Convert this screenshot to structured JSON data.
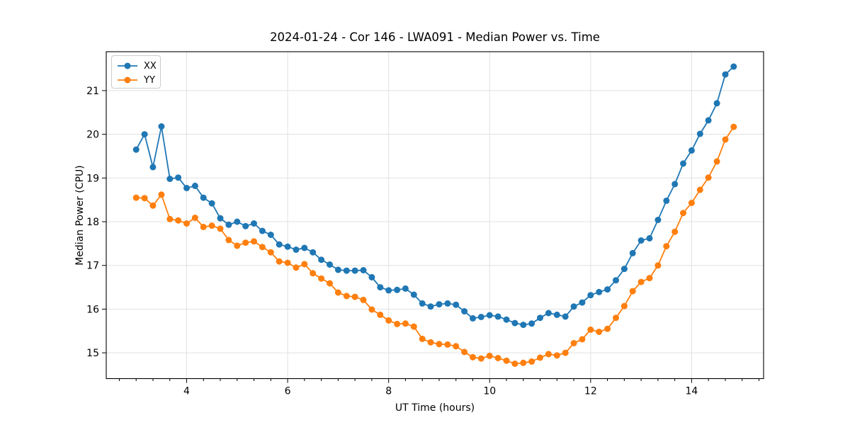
{
  "title": "2024-01-24 - Cor 146 - LWA091 - Median Power vs. Time",
  "chart_data": {
    "type": "line",
    "title": "2024-01-24 - Cor 146 - LWA091 - Median Power vs. Time",
    "xlabel": "UT Time (hours)",
    "ylabel": "Median Power (CPU)",
    "xlim": [
      2.408,
      15.425
    ],
    "ylim": [
      14.41,
      21.89
    ],
    "x_major_ticks": [
      4,
      6,
      8,
      10,
      12,
      14
    ],
    "x_minor_step": 0.33333,
    "y_major_ticks": [
      15,
      16,
      17,
      18,
      19,
      20,
      21
    ],
    "grid": true,
    "grid_color": "#e1e1e1",
    "legend_position": "upper-left",
    "marker": "circle",
    "x": [
      3.0,
      3.167,
      3.333,
      3.5,
      3.667,
      3.833,
      4.0,
      4.167,
      4.333,
      4.5,
      4.667,
      4.833,
      5.0,
      5.167,
      5.333,
      5.5,
      5.667,
      5.833,
      6.0,
      6.167,
      6.333,
      6.5,
      6.667,
      6.833,
      7.0,
      7.167,
      7.333,
      7.5,
      7.667,
      7.833,
      8.0,
      8.167,
      8.333,
      8.5,
      8.667,
      8.833,
      9.0,
      9.167,
      9.333,
      9.5,
      9.667,
      9.833,
      10.0,
      10.167,
      10.333,
      10.5,
      10.667,
      10.833,
      11.0,
      11.167,
      11.333,
      11.5,
      11.667,
      11.833,
      12.0,
      12.167,
      12.333,
      12.5,
      12.667,
      12.833,
      13.0,
      13.167,
      13.333,
      13.5,
      13.667,
      13.833,
      14.0,
      14.167,
      14.333,
      14.5,
      14.667,
      14.833
    ],
    "series": [
      {
        "name": "XX",
        "color": "#1f77b4",
        "values": [
          19.65,
          20.0,
          19.25,
          20.18,
          18.98,
          19.01,
          18.77,
          18.82,
          18.55,
          18.42,
          18.08,
          17.93,
          18.0,
          17.9,
          17.96,
          17.79,
          17.7,
          17.48,
          17.43,
          17.36,
          17.4,
          17.3,
          17.13,
          17.02,
          16.9,
          16.88,
          16.88,
          16.89,
          16.73,
          16.5,
          16.43,
          16.44,
          16.47,
          16.33,
          16.13,
          16.06,
          16.11,
          16.13,
          16.1,
          15.95,
          15.79,
          15.82,
          15.86,
          15.83,
          15.76,
          15.68,
          15.64,
          15.67,
          15.8,
          15.91,
          15.87,
          15.83,
          16.06,
          16.15,
          16.32,
          16.39,
          16.45,
          16.66,
          16.92,
          17.28,
          17.57,
          17.62,
          18.04,
          18.48,
          18.86,
          19.33,
          19.63,
          20.01,
          20.32,
          20.71,
          21.37,
          21.55
        ]
      },
      {
        "name": "YY",
        "color": "#ff7f0e",
        "values": [
          18.55,
          18.54,
          18.37,
          18.62,
          18.06,
          18.03,
          17.96,
          18.09,
          17.88,
          17.91,
          17.84,
          17.58,
          17.45,
          17.52,
          17.55,
          17.42,
          17.3,
          17.09,
          17.06,
          16.95,
          17.03,
          16.82,
          16.7,
          16.59,
          16.38,
          16.3,
          16.28,
          16.21,
          15.99,
          15.87,
          15.74,
          15.66,
          15.67,
          15.6,
          15.32,
          15.24,
          15.2,
          15.19,
          15.15,
          15.02,
          14.9,
          14.87,
          14.93,
          14.88,
          14.82,
          14.75,
          14.77,
          14.8,
          14.89,
          14.97,
          14.94,
          15.0,
          15.22,
          15.31,
          15.53,
          15.48,
          15.55,
          15.8,
          16.07,
          16.41,
          16.62,
          16.71,
          17.0,
          17.44,
          17.77,
          18.2,
          18.43,
          18.73,
          19.01,
          19.38,
          19.88,
          20.17
        ]
      }
    ]
  }
}
